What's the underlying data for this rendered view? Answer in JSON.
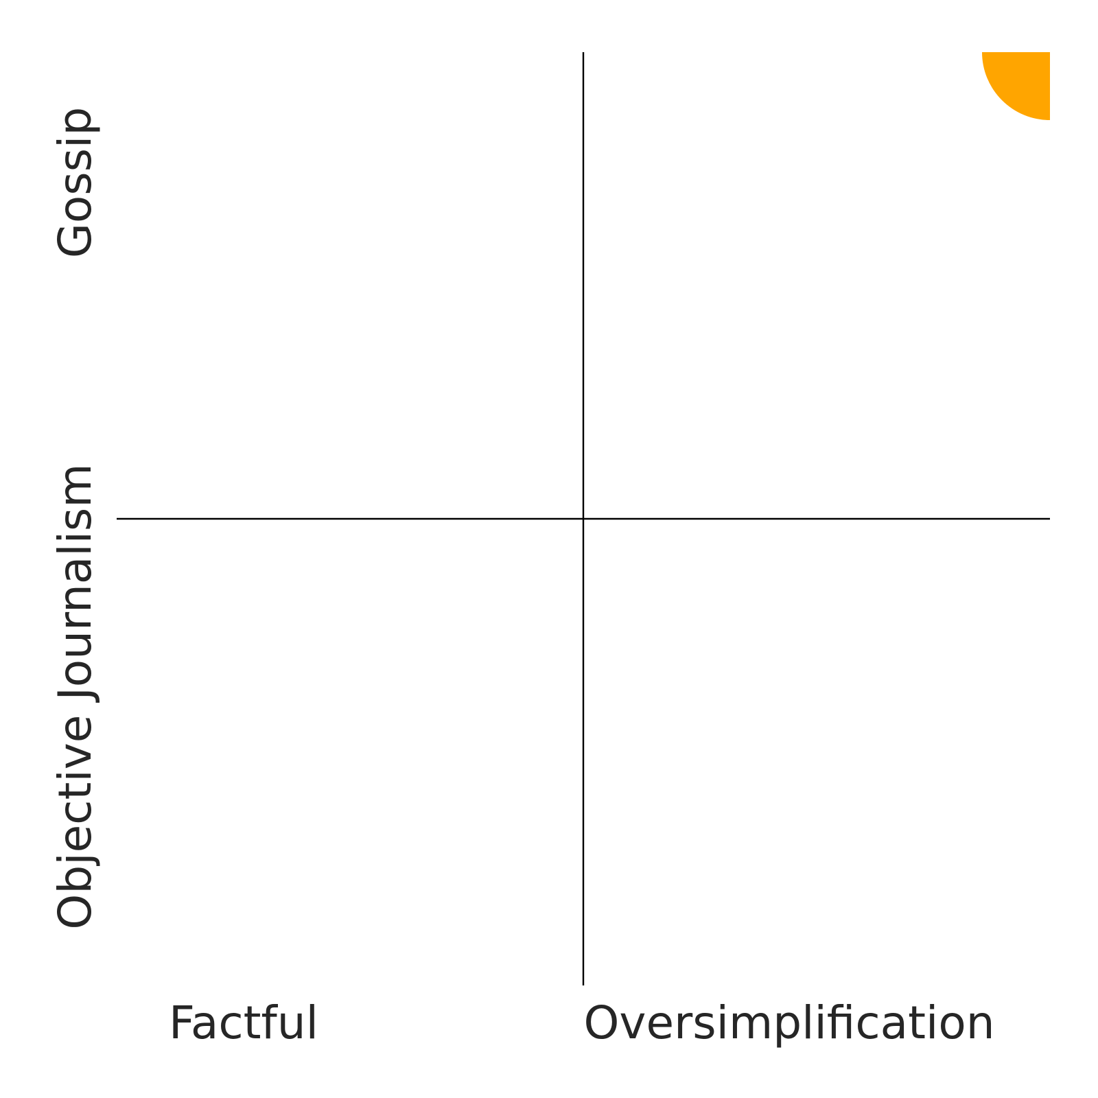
{
  "chart_data": {
    "type": "scatter",
    "x_axis": {
      "low_label": "Factful",
      "high_label": "Oversimplification"
    },
    "y_axis": {
      "low_label": "Objective Journalism",
      "high_label": "Gossip"
    },
    "xlim": [
      0,
      1
    ],
    "ylim": [
      0,
      1
    ],
    "divider_x": 0.5,
    "divider_y": 0.5,
    "grid": false,
    "series": [
      {
        "color": "#FFA500",
        "points": [
          {
            "x": 1.0,
            "y": 1.0
          }
        ]
      }
    ]
  }
}
